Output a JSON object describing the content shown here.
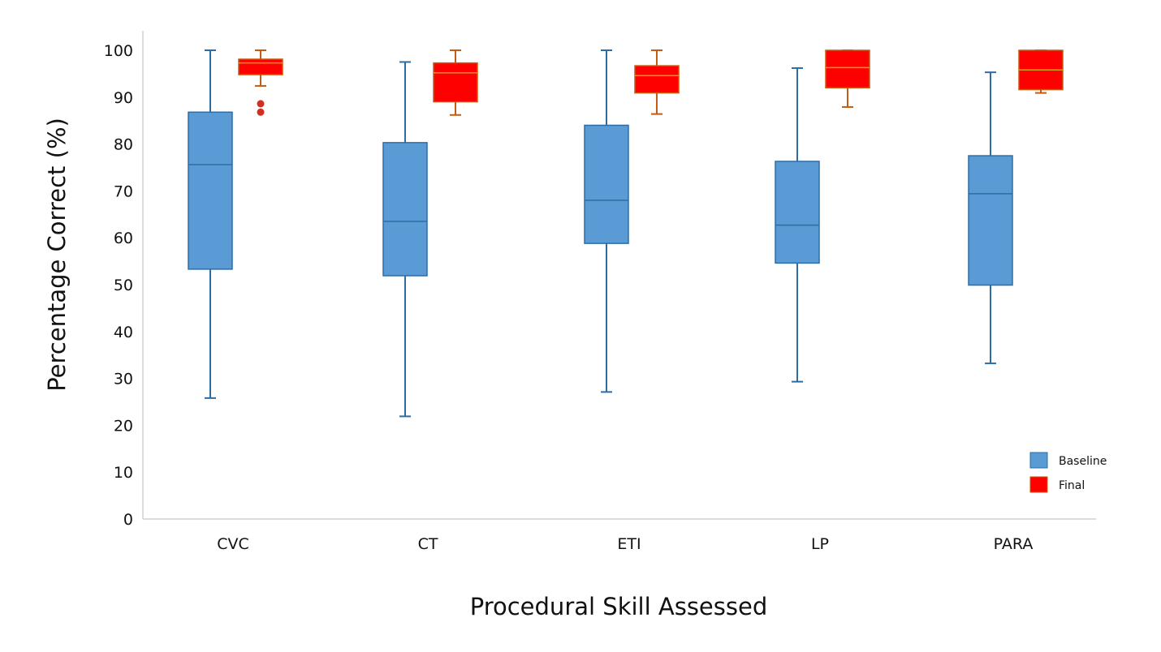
{
  "chart_data": {
    "type": "boxplot",
    "title": "",
    "xlabel": "Procedural Skill Assessed",
    "ylabel": "Percentage Correct (%)",
    "ylim": [
      0,
      100
    ],
    "yticks": [
      0,
      10,
      20,
      30,
      40,
      50,
      60,
      70,
      80,
      90,
      100
    ],
    "categories": [
      "CVC",
      "CT",
      "ETI",
      "LP",
      "PARA"
    ],
    "legend_position": "bottom-right",
    "series": [
      {
        "name": "Baseline",
        "color": "#5B9BD5",
        "stroke": "#2E6DA4",
        "median_color": "#2E6DA4",
        "boxes": [
          {
            "min": 25.8,
            "q1": 53.3,
            "median": 75.6,
            "q3": 86.8,
            "max": 100,
            "outliers": []
          },
          {
            "min": 21.9,
            "q1": 51.9,
            "median": 63.5,
            "q3": 80.3,
            "max": 97.5,
            "outliers": []
          },
          {
            "min": 27.1,
            "q1": 58.8,
            "median": 68.0,
            "q3": 84.0,
            "max": 100,
            "outliers": []
          },
          {
            "min": 29.3,
            "q1": 54.6,
            "median": 62.7,
            "q3": 76.3,
            "max": 96.2,
            "outliers": []
          },
          {
            "min": 33.2,
            "q1": 49.9,
            "median": 69.4,
            "q3": 77.5,
            "max": 95.3,
            "outliers": []
          }
        ]
      },
      {
        "name": "Final",
        "color": "#FF0000",
        "stroke": "#C55A11",
        "median_color": "#D4A017",
        "boxes": [
          {
            "min": 92.4,
            "q1": 94.8,
            "median": 97.3,
            "q3": 98.1,
            "max": 100,
            "outliers": [
              88.6,
              86.8
            ]
          },
          {
            "min": 86.2,
            "q1": 89.0,
            "median": 95.2,
            "q3": 97.3,
            "max": 100,
            "outliers": []
          },
          {
            "min": 86.4,
            "q1": 90.9,
            "median": 94.6,
            "q3": 96.7,
            "max": 100,
            "outliers": []
          },
          {
            "min": 87.9,
            "q1": 92.0,
            "median": 96.3,
            "q3": 100,
            "max": 100,
            "outliers": []
          },
          {
            "min": 90.9,
            "q1": 91.6,
            "median": 95.8,
            "q3": 100,
            "max": 100,
            "outliers": []
          }
        ]
      }
    ]
  }
}
